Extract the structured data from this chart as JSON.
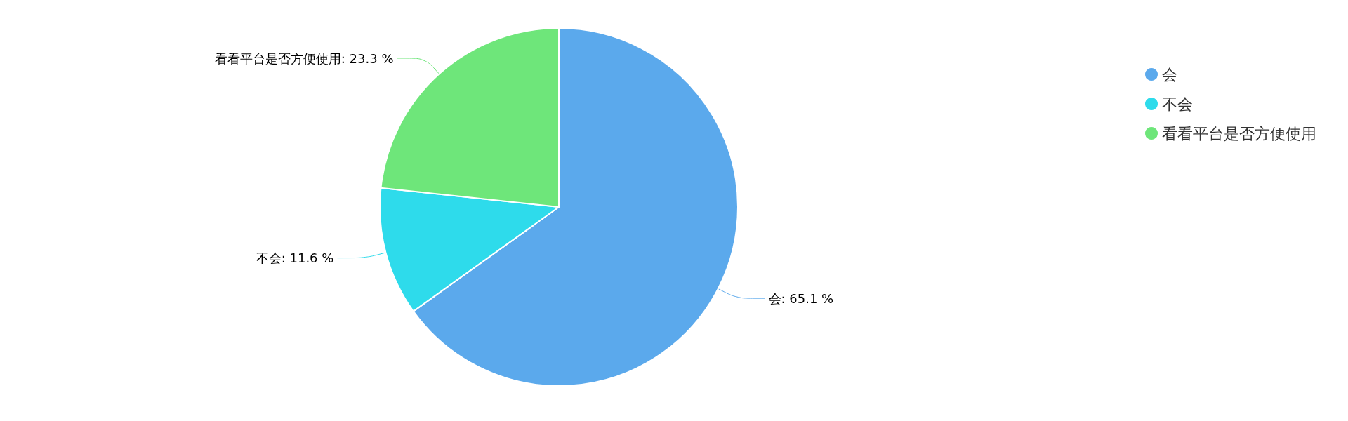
{
  "chart_data": {
    "type": "pie",
    "categories": [
      "会",
      "不会",
      "看看平台是否方便使用"
    ],
    "values": [
      65.1,
      11.6,
      23.3
    ],
    "value_labels": [
      "会: 65.1 %",
      "不会: 11.6 %",
      "看看平台是否方便使用: 23.3 %"
    ],
    "colors": [
      "#5ba9ec",
      "#2edbeb",
      "#6ee67a"
    ],
    "legend": "top right"
  }
}
